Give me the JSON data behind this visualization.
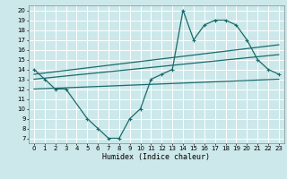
{
  "xlabel": "Humidex (Indice chaleur)",
  "bg_color": "#cce8ea",
  "grid_color": "#ffffff",
  "line_color": "#1a6b6b",
  "xlim": [
    -0.5,
    23.5
  ],
  "ylim": [
    6.5,
    20.5
  ],
  "xticks": [
    0,
    1,
    2,
    3,
    4,
    5,
    6,
    7,
    8,
    9,
    10,
    11,
    12,
    13,
    14,
    15,
    16,
    17,
    18,
    19,
    20,
    21,
    22,
    23
  ],
  "yticks": [
    7,
    8,
    9,
    10,
    11,
    12,
    13,
    14,
    15,
    16,
    17,
    18,
    19,
    20
  ],
  "line1_x": [
    0,
    1,
    2,
    3,
    5,
    6,
    7,
    8,
    9,
    10,
    11,
    12,
    13,
    14,
    15,
    16,
    17,
    18,
    19,
    20,
    21,
    22,
    23
  ],
  "line1_y": [
    14,
    13,
    12,
    12,
    9,
    8,
    7,
    7,
    9,
    10,
    13,
    13.5,
    14,
    20,
    17,
    18.5,
    19,
    19,
    18.5,
    17,
    15,
    14,
    13.5
  ],
  "line2_x": [
    0,
    23
  ],
  "line2_y": [
    13.0,
    15.5
  ],
  "line3_x": [
    0,
    23
  ],
  "line3_y": [
    13.5,
    16.5
  ],
  "line4_x": [
    0,
    23
  ],
  "line4_y": [
    12.0,
    13.0
  ]
}
